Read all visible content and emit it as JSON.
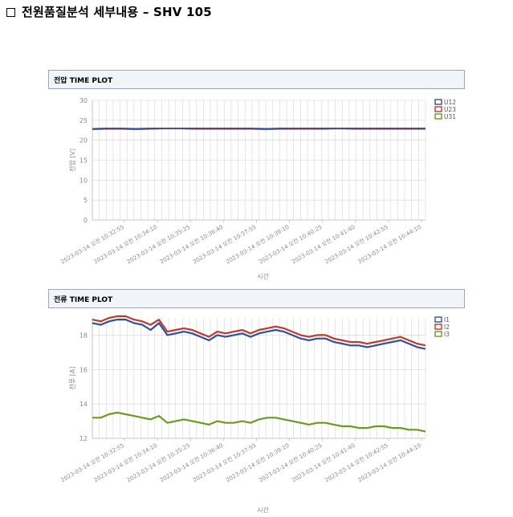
{
  "page": {
    "title": "전원품질분석 세부내용 – SHV 105"
  },
  "colors": {
    "series1": "#2f4f9f",
    "series2": "#c0392b",
    "series3": "#6a9a1f",
    "grid": "#d5d5d5",
    "axis_text": "#8a8a8a"
  },
  "chart_data": [
    {
      "id": "voltage",
      "type": "line",
      "title": "전압 TIME PLOT",
      "xlabel": "시간",
      "ylabel": "전압 [V]",
      "ylim": [
        0,
        30
      ],
      "yticks": [
        0,
        5,
        10,
        15,
        20,
        25,
        30
      ],
      "grid": true,
      "legend_position": "top-right",
      "x_tick_labels": [
        "2023-03-14 오전 10:32:55",
        "2023-03-14 오전 10:34:10",
        "2023-03-14 오전 10:35:25",
        "2023-03-14 오전 10:36:40",
        "2023-03-14 오전 10:37:55",
        "2023-03-14 오전 10:39:10",
        "2023-03-14 오전 10:40:25",
        "2023-03-14 오전 10:41:40",
        "2023-03-14 오전 10:42:55",
        "2023-03-14 오전 10:44:10"
      ],
      "series": [
        {
          "name": "U12",
          "values": [
            22.9,
            23.0,
            23.0,
            22.9,
            23.0,
            23.0,
            23.0,
            23.0,
            23.0,
            23.0,
            23.0,
            23.0,
            22.9,
            23.0,
            23.0,
            23.0,
            23.0,
            23.0,
            23.0,
            23.0,
            23.0,
            23.0,
            23.0,
            23.0
          ]
        },
        {
          "name": "U23",
          "values": [
            22.8,
            22.9,
            22.9,
            22.8,
            22.9,
            23.0,
            23.0,
            22.9,
            22.9,
            22.9,
            22.9,
            22.9,
            22.8,
            22.9,
            22.9,
            22.9,
            22.9,
            23.0,
            22.9,
            22.9,
            22.9,
            22.9,
            22.9,
            22.9
          ]
        },
        {
          "name": "U31",
          "values": [
            22.7,
            22.8,
            22.8,
            22.7,
            22.8,
            22.9,
            22.9,
            22.8,
            22.8,
            22.8,
            22.8,
            22.8,
            22.7,
            22.8,
            22.8,
            22.8,
            22.8,
            22.9,
            22.8,
            22.8,
            22.8,
            22.8,
            22.8,
            22.8
          ]
        }
      ]
    },
    {
      "id": "current",
      "type": "line",
      "title": "전류 TIME PLOT",
      "xlabel": "시간",
      "ylabel": "전류 [A]",
      "ylim": [
        12,
        19
      ],
      "yticks": [
        12,
        14,
        16,
        18
      ],
      "grid": true,
      "legend_position": "top-right",
      "x_tick_labels": [
        "2023-03-14 오전 10:32:55",
        "2023-03-14 오전 10:34:10",
        "2023-03-14 오전 10:35:25",
        "2023-03-14 오전 10:36:40",
        "2023-03-14 오전 10:37:55",
        "2023-03-14 오전 10:39:10",
        "2023-03-14 오전 10:40:25",
        "2023-03-14 오전 10:41:40",
        "2023-03-14 오전 10:42:55",
        "2023-03-14 오전 10:44:10"
      ],
      "series": [
        {
          "name": "I1",
          "values": [
            18.7,
            18.6,
            18.8,
            18.9,
            18.9,
            18.7,
            18.6,
            18.3,
            18.7,
            18.0,
            18.1,
            18.2,
            18.1,
            17.9,
            17.7,
            18.0,
            17.9,
            18.0,
            18.1,
            17.9,
            18.1,
            18.2,
            18.3,
            18.2,
            18.0,
            17.8,
            17.7,
            17.8,
            17.8,
            17.6,
            17.5,
            17.4,
            17.4,
            17.3,
            17.4,
            17.5,
            17.6,
            17.7,
            17.5,
            17.3,
            17.2
          ]
        },
        {
          "name": "I2",
          "values": [
            18.9,
            18.8,
            19.0,
            19.1,
            19.1,
            18.9,
            18.8,
            18.6,
            18.9,
            18.2,
            18.3,
            18.4,
            18.3,
            18.1,
            17.9,
            18.2,
            18.1,
            18.2,
            18.3,
            18.1,
            18.3,
            18.4,
            18.5,
            18.4,
            18.2,
            18.0,
            17.9,
            18.0,
            18.0,
            17.8,
            17.7,
            17.6,
            17.6,
            17.5,
            17.6,
            17.7,
            17.8,
            17.9,
            17.7,
            17.5,
            17.4
          ]
        },
        {
          "name": "I3",
          "values": [
            13.2,
            13.2,
            13.4,
            13.5,
            13.4,
            13.3,
            13.2,
            13.1,
            13.3,
            12.9,
            13.0,
            13.1,
            13.0,
            12.9,
            12.8,
            13.0,
            12.9,
            12.9,
            13.0,
            12.9,
            13.1,
            13.2,
            13.2,
            13.1,
            13.0,
            12.9,
            12.8,
            12.9,
            12.9,
            12.8,
            12.7,
            12.7,
            12.6,
            12.6,
            12.7,
            12.7,
            12.6,
            12.6,
            12.5,
            12.5,
            12.4
          ]
        }
      ]
    }
  ]
}
